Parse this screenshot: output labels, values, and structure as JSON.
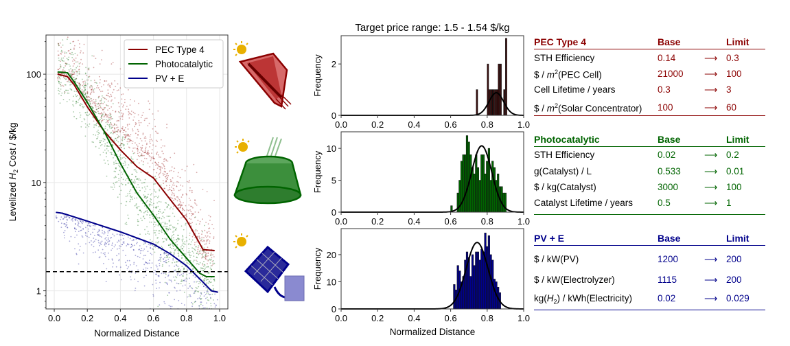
{
  "colors": {
    "pec": "#8b0000",
    "photocatalytic": "#006400",
    "pv": "#00008b"
  },
  "chart_data": [
    {
      "type": "scatter",
      "xlabel": "Normalized Distance",
      "ylabel_prefix": "Levelized ",
      "ylabel_var": "H",
      "ylabel_sub": "2",
      "ylabel_suffix": " Cost / $/kg",
      "xlim": [
        -0.05,
        1.05
      ],
      "ylim": [
        0.68,
        230
      ],
      "yscale": "log",
      "grid": true,
      "legend": "top-right",
      "xticks": [
        "0.0",
        "0.2",
        "0.4",
        "0.6",
        "0.8",
        "1.0"
      ],
      "yticks": [
        "1",
        "10",
        "100"
      ],
      "target_line": 1.5,
      "series": [
        {
          "name": "PEC Type 4",
          "color": "#8b0000",
          "x": [
            0.02,
            0.08,
            0.12,
            0.2,
            0.3,
            0.4,
            0.5,
            0.6,
            0.7,
            0.8,
            0.9,
            0.97
          ],
          "y": [
            100,
            95,
            80,
            50,
            30,
            20,
            14,
            11,
            7,
            4.5,
            2.4,
            2.35
          ]
        },
        {
          "name": "Photocatalytic",
          "color": "#006400",
          "x": [
            0.02,
            0.08,
            0.12,
            0.2,
            0.3,
            0.4,
            0.5,
            0.6,
            0.7,
            0.8,
            0.88,
            0.92,
            0.97
          ],
          "y": [
            105,
            103,
            85,
            55,
            30,
            15,
            8,
            5,
            3,
            2,
            1.45,
            1.35,
            1.35
          ]
        },
        {
          "name": "PV + E",
          "color": "#00008b",
          "x": [
            0.01,
            0.05,
            0.2,
            0.4,
            0.6,
            0.7,
            0.8,
            0.9,
            0.95,
            0.99
          ],
          "y": [
            5.3,
            5.2,
            4.4,
            3.5,
            2.7,
            2.2,
            1.7,
            1.2,
            1.0,
            0.97
          ]
        }
      ]
    },
    {
      "type": "bar",
      "title": "Target price range: 1.5 - 1.54 $/kg",
      "ylabel": "Frequency",
      "xlim": [
        0,
        1
      ],
      "ylim": [
        0,
        3.1
      ],
      "xticks": [
        "0.0",
        "0.2",
        "0.4",
        "0.6",
        "0.8",
        "1.0"
      ],
      "yticks": [
        "0",
        "2"
      ],
      "color": "#3a0a0a",
      "bin_width": 0.008,
      "x": [
        0.74,
        0.8,
        0.81,
        0.82,
        0.83,
        0.84,
        0.85,
        0.86,
        0.87,
        0.89,
        0.9
      ],
      "values": [
        1,
        2,
        1,
        1,
        1,
        1,
        1,
        2,
        2,
        1,
        3
      ],
      "fit": {
        "mean": 0.85,
        "sd": 0.04,
        "peak": 0.88
      }
    },
    {
      "type": "bar",
      "ylabel": "Frequency",
      "xlim": [
        0,
        1
      ],
      "ylim": [
        0,
        12.6
      ],
      "xticks": [
        "0.0",
        "0.2",
        "0.4",
        "0.6",
        "0.8",
        "1.0"
      ],
      "yticks": [
        "0",
        "5",
        "10"
      ],
      "color": "#006400",
      "bin_width": 0.0095,
      "x": [
        0.6,
        0.635,
        0.645,
        0.655,
        0.665,
        0.675,
        0.685,
        0.695,
        0.705,
        0.715,
        0.725,
        0.735,
        0.745,
        0.755,
        0.765,
        0.775,
        0.785,
        0.795,
        0.805,
        0.815,
        0.825,
        0.835,
        0.845,
        0.855,
        0.865,
        0.875,
        0.885,
        0.895
      ],
      "values": [
        1,
        3,
        5,
        8,
        9,
        9,
        12,
        11,
        9,
        7,
        6,
        9,
        7,
        5,
        9,
        9,
        6,
        8,
        10,
        5,
        8,
        7,
        5,
        6,
        4,
        4,
        3,
        3
      ],
      "fit": {
        "mean": 0.77,
        "sd": 0.055,
        "peak": 10.4
      }
    },
    {
      "type": "bar",
      "xlabel": "Normalized Distance",
      "ylabel": "Frequency",
      "xlim": [
        0,
        1
      ],
      "ylim": [
        0,
        29.6
      ],
      "xticks": [
        "0.0",
        "0.2",
        "0.4",
        "0.6",
        "0.8",
        "1.0"
      ],
      "yticks": [
        "0",
        "10",
        "20"
      ],
      "color": "#00008b",
      "bin_width": 0.0095,
      "x": [
        0.615,
        0.625,
        0.635,
        0.645,
        0.655,
        0.665,
        0.675,
        0.685,
        0.695,
        0.705,
        0.715,
        0.725,
        0.735,
        0.745,
        0.755,
        0.765,
        0.775,
        0.785,
        0.795,
        0.805,
        0.815,
        0.825,
        0.835,
        0.845,
        0.855,
        0.865
      ],
      "values": [
        9,
        7,
        16,
        14,
        10,
        12,
        18,
        21,
        19,
        12,
        20,
        16,
        21,
        21,
        18,
        22,
        21,
        28,
        23,
        27,
        20,
        18,
        11,
        10,
        8,
        6
      ],
      "fit": {
        "mean": 0.745,
        "sd": 0.06,
        "peak": 24.5
      }
    }
  ],
  "tables": [
    {
      "title": "PEC Type 4",
      "base": "Base",
      "limit": "Limit",
      "color": "#8b0000",
      "rows": [
        {
          "label": "STH Efficiency",
          "base": "0.14",
          "arrow": "⟶",
          "limit": "0.3"
        },
        {
          "label_pre": "$ / ",
          "label_var": "m",
          "label_sup": "2",
          "label_post": "(PEC Cell)",
          "base": "21000",
          "arrow": "⟶",
          "limit": "100"
        },
        {
          "label": "Cell Lifetime / years",
          "base": "0.3",
          "arrow": "⟶",
          "limit": "3"
        },
        {
          "label_pre": "$ / ",
          "label_var": "m",
          "label_sup": "2",
          "label_post": "(Solar Concentrator)",
          "base": "100",
          "arrow": "⟶",
          "limit": "60"
        }
      ]
    },
    {
      "title": "Photocatalytic",
      "base": "Base",
      "limit": "Limit",
      "color": "#006400",
      "rows": [
        {
          "label": "STH Efficiency",
          "base": "0.02",
          "arrow": "⟶",
          "limit": "0.2"
        },
        {
          "label": "g(Catalyst) / L",
          "base": "0.533",
          "arrow": "⟶",
          "limit": "0.01"
        },
        {
          "label": "$ / kg(Catalyst)",
          "base": "3000",
          "arrow": "⟶",
          "limit": "100"
        },
        {
          "label": "Catalyst Lifetime / years",
          "base": "0.5",
          "arrow": "⟶",
          "limit": "1"
        }
      ]
    },
    {
      "title": "PV + E",
      "base": "Base",
      "limit": "Limit",
      "color": "#00008b",
      "rows": [
        {
          "label": "$ / kW(PV)",
          "base": "1200",
          "arrow": "⟶",
          "limit": "200"
        },
        {
          "label": "$ / kW(Electrolyzer)",
          "base": "1115",
          "arrow": "⟶",
          "limit": "200"
        },
        {
          "label_pre": "kg(",
          "label_var": "H",
          "label_sub": "2",
          "label_post": ") / kWh(Electricity)",
          "base": "0.02",
          "arrow": "⟶",
          "limit": "0.029"
        }
      ]
    }
  ],
  "icons": [
    "pec-concentrator-icon",
    "photocatalytic-reactor-icon",
    "pv-electrolyzer-icon"
  ]
}
